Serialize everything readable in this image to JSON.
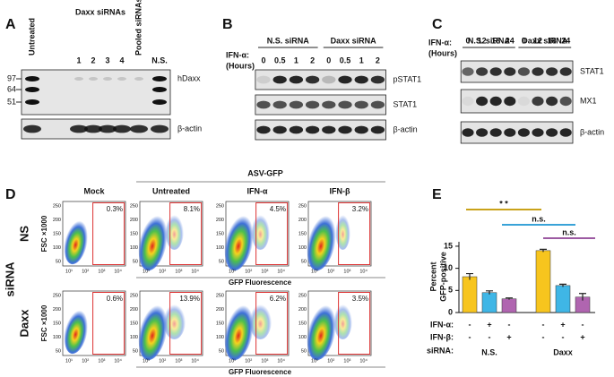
{
  "panels": {
    "A": {
      "label": "A",
      "group": "Daxx siRNAs",
      "lanes": [
        "Untreated",
        "1",
        "2",
        "3",
        "4",
        "Pooled siRNAs",
        "N.S."
      ],
      "markers": [
        "97",
        "64",
        "51"
      ],
      "blots": [
        "hDaxx",
        "β-actin"
      ]
    },
    "B": {
      "label": "B",
      "row_label": [
        "IFN-α:",
        "(Hours)"
      ],
      "groups": [
        "N.S. siRNA",
        "Daxx siRNA"
      ],
      "times": [
        "0",
        "0.5",
        "1",
        "2",
        "0",
        "0.5",
        "1",
        "2"
      ],
      "blots": [
        "pSTAT1",
        "STAT1",
        "β-actin"
      ]
    },
    "C": {
      "label": "C",
      "row_label": [
        "IFN-α:",
        "(Hours)"
      ],
      "groups": [
        "N.S. siRNA",
        "Daxx siRNA"
      ],
      "times": [
        "0",
        "12",
        "18",
        "24",
        "0",
        "12",
        "18",
        "24"
      ],
      "blots": [
        "STAT1",
        "MX1",
        "β-actin"
      ]
    },
    "D": {
      "label": "D",
      "header": "ASV-GFP",
      "columns": [
        "Mock",
        "Untreated",
        "IFN-α",
        "IFN-β"
      ],
      "side": "siRNA",
      "rows": [
        {
          "name": "NS",
          "percents": [
            "0.3%",
            "8.1%",
            "4.5%",
            "3.2%"
          ]
        },
        {
          "name": "Daxx",
          "percents": [
            "0.6%",
            "13.9%",
            "6.2%",
            "3.5%"
          ]
        }
      ],
      "y_axis": "FSC ×1000",
      "x_axis": "GFP Fluorescence",
      "yticks": [
        "250",
        "200",
        "150",
        "100",
        "50"
      ],
      "xticks": [
        "10¹",
        "10²",
        "10³",
        "10⁴"
      ]
    }
  },
  "chart_data": {
    "type": "bar",
    "label": "E",
    "ylabel": [
      "Percent",
      "GFP-positive"
    ],
    "values": [
      8.1,
      4.5,
      3.1,
      14.0,
      6.1,
      3.5
    ],
    "errors": [
      0.7,
      0.4,
      0.2,
      0.3,
      0.3,
      0.8
    ],
    "colors": [
      "#f7c51e",
      "#3fb6e6",
      "#b065b0",
      "#f7c51e",
      "#3fb6e6",
      "#b065b0"
    ],
    "ylim": [
      0,
      16
    ],
    "yticks": [
      0,
      5,
      10,
      15
    ],
    "factors": [
      {
        "label": "IFN-α:",
        "values": [
          "-",
          "+",
          "-",
          "-",
          "+",
          "-"
        ]
      },
      {
        "label": "IFN-β:",
        "values": [
          "-",
          "-",
          "+",
          "-",
          "-",
          "+"
        ]
      }
    ],
    "groups_label": "siRNA:",
    "groups": [
      "N.S.",
      "Daxx"
    ],
    "annotations": [
      {
        "text": "* *",
        "color": "#c9a21a"
      },
      {
        "text": "n.s.",
        "color": "#39a3d8"
      },
      {
        "text": "n.s.",
        "color": "#9c5aa2"
      }
    ]
  }
}
